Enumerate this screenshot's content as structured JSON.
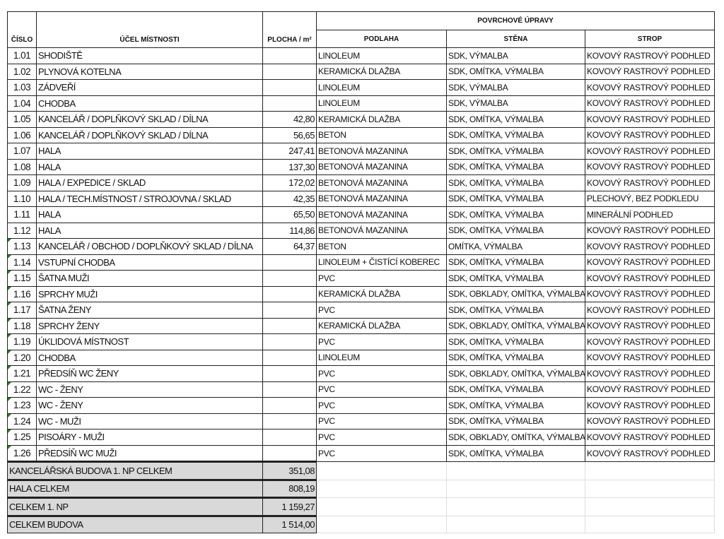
{
  "header": {
    "cislo": "ČÍSLO",
    "ucel": "ÚČEL MÍSTNOSTI",
    "plocha": "PLOCHA / m²",
    "povrchove": "POVRCHOVÉ ÚPRAVY",
    "podlaha": "PODLAHA",
    "stena": "STĚNA",
    "strop": "STROP"
  },
  "rows": [
    [
      "1.01",
      "SHODIŠTĚ",
      "",
      "LINOLEUM",
      "SDK, VÝMALBA",
      "KOVOVÝ RASTROVÝ PODHLED"
    ],
    [
      "1.02",
      "PLYNOVÁ KOTELNA",
      "",
      "KERAMICKÁ DLAŽBA",
      "SDK, OMÍTKA, VÝMALBA",
      "KOVOVÝ RASTROVÝ PODHLED"
    ],
    [
      "1.03",
      "ZÁDVEŘÍ",
      "",
      "LINOLEUM",
      "SDK, VÝMALBA",
      "KOVOVÝ RASTROVÝ PODHLED"
    ],
    [
      "1.04",
      "CHODBA",
      "",
      "LINOLEUM",
      "SDK, VÝMALBA",
      "KOVOVÝ RASTROVÝ PODHLED"
    ],
    [
      "1.05",
      "KANCELÁŘ / DOPLŇKOVÝ SKLAD / DÍLNA",
      "42,80",
      "KERAMICKÁ DLAŽBA",
      "SDK, OMÍTKA, VÝMALBA",
      "KOVOVÝ RASTROVÝ PODHLED"
    ],
    [
      "1.06",
      "KANCELÁŘ / DOPLŇKOVÝ SKLAD / DÍLNA",
      "56,65",
      "BETON",
      "SDK, OMÍTKA, VÝMALBA",
      "KOVOVÝ RASTROVÝ PODHLED"
    ],
    [
      "1.07",
      "HALA",
      "247,41",
      "BETONOVÁ MAZANINA",
      "SDK, OMÍTKA, VÝMALBA",
      "KOVOVÝ RASTROVÝ PODHLED"
    ],
    [
      "1.08",
      "HALA",
      "137,30",
      "BETONOVÁ MAZANINA",
      "SDK, OMÍTKA, VÝMALBA",
      "KOVOVÝ RASTROVÝ PODHLED"
    ],
    [
      "1.09",
      "HALA / EXPEDICE / SKLAD",
      "172,02",
      "BETONOVÁ MAZANINA",
      "SDK, OMÍTKA, VÝMALBA",
      "KOVOVÝ RASTROVÝ PODHLED"
    ],
    [
      "1.10",
      "HALA / TECH.MÍSTNOST / STROJOVNA / SKLAD",
      "42,35",
      "BETONOVÁ MAZANINA",
      "SDK, OMÍTKA, VÝMALBA",
      "PLECHOVÝ, BEZ PODKLEDU"
    ],
    [
      "1.11",
      "HALA",
      "65,50",
      "BETONOVÁ MAZANINA",
      "SDK, OMÍTKA, VÝMALBA",
      "MINERÁLNÍ PODHLED"
    ],
    [
      "1.12",
      "HALA",
      "114,86",
      "BETONOVÁ MAZANINA",
      "SDK, OMÍTKA, VÝMALBA",
      "KOVOVÝ RASTROVÝ PODHLED"
    ],
    [
      "1.13",
      "KANCELÁŘ / OBCHOD / DOPLŇKOVÝ SKLAD / DÍLNA",
      "64,37",
      "BETON",
      "OMÍTKA, VÝMALBA",
      "KOVOVÝ RASTROVÝ PODHLED"
    ],
    [
      "1.14",
      "VSTUPNÍ CHODBA",
      "",
      "LINOLEUM + ČISTÍCÍ KOBEREC",
      "SDK, OMÍTKA, VÝMALBA",
      "KOVOVÝ RASTROVÝ PODHLED"
    ],
    [
      "1.15",
      "ŠATNA MUŽI",
      "",
      "PVC",
      "SDK, OMÍTKA, VÝMALBA",
      "KOVOVÝ RASTROVÝ PODHLED"
    ],
    [
      "1.16",
      "SPRCHY MUŽI",
      "",
      "KERAMICKÁ DLAŽBA",
      "SDK, OBKLADY, OMÍTKA, VÝMALBA",
      "KOVOVÝ RASTROVÝ PODHLED"
    ],
    [
      "1.17",
      "ŠATNA ŽENY",
      "",
      "PVC",
      "SDK, OMÍTKA, VÝMALBA",
      "KOVOVÝ RASTROVÝ PODHLED"
    ],
    [
      "1.18",
      "SPRCHY ŽENY",
      "",
      "KERAMICKÁ DLAŽBA",
      "SDK, OBKLADY, OMÍTKA, VÝMALBA",
      "KOVOVÝ RASTROVÝ PODHLED"
    ],
    [
      "1.19",
      "ÚKLIDOVÁ MÍSTNOST",
      "",
      "PVC",
      "SDK, OMÍTKA, VÝMALBA",
      "KOVOVÝ RASTROVÝ PODHLED"
    ],
    [
      "1.20",
      "CHODBA",
      "",
      "LINOLEUM",
      "SDK, OMÍTKA, VÝMALBA",
      "KOVOVÝ RASTROVÝ PODHLED"
    ],
    [
      "1.21",
      "PŘEDSÍŇ WC ŽENY",
      "",
      "PVC",
      "SDK, OBKLADY, OMÍTKA, VÝMALBA",
      "KOVOVÝ RASTROVÝ PODHLED"
    ],
    [
      "1.22",
      "WC - ŽENY",
      "",
      "PVC",
      "SDK, OMÍTKA, VÝMALBA",
      "KOVOVÝ RASTROVÝ PODHLED"
    ],
    [
      "1.23",
      "WC - ŽENY",
      "",
      "PVC",
      "SDK, OMÍTKA, VÝMALBA",
      "KOVOVÝ RASTROVÝ PODHLED"
    ],
    [
      "1.24",
      "WC - MUŽI",
      "",
      "PVC",
      "SDK, OMÍTKA, VÝMALBA",
      "KOVOVÝ RASTROVÝ PODHLED"
    ],
    [
      "1.25",
      "PISOÁRY - MUŽI",
      "",
      "PVC",
      "SDK, OBKLADY, OMÍTKA, VÝMALBA",
      "KOVOVÝ RASTROVÝ PODHLED"
    ],
    [
      "1.26",
      "PŘEDSÍŇ WC MUŽI",
      "",
      "PVC",
      "SDK, OMÍTKA, VÝMALBA",
      "KOVOVÝ RASTROVÝ PODHLED"
    ]
  ],
  "totals": [
    [
      "KANCELÁŘSKÁ BUDOVA 1. NP CELKEM",
      "351,08"
    ],
    [
      "HALA CELKEM",
      "808,19"
    ],
    [
      "CELKEM 1. NP",
      "1 159,27"
    ],
    [
      "CELKEM BUDOVA",
      "1 514,00"
    ]
  ]
}
